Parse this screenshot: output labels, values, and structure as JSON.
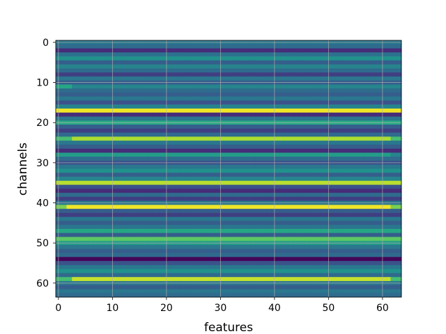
{
  "chart_data": {
    "type": "heatmap",
    "title": "",
    "xlabel": "features",
    "ylabel": "channels",
    "colormap": "viridis",
    "x_range": [
      0,
      63
    ],
    "y_range": [
      0,
      63
    ],
    "y_inverted": true,
    "grid": true,
    "x_ticks": [
      0,
      10,
      20,
      30,
      40,
      50,
      60
    ],
    "y_ticks": [
      0,
      10,
      20,
      30,
      40,
      50,
      60
    ],
    "x_tick_labels": [
      "0",
      "10",
      "20",
      "30",
      "40",
      "50",
      "60"
    ],
    "y_tick_labels": [
      "0",
      "10",
      "20",
      "30",
      "40",
      "50",
      "60"
    ],
    "n_features": 64,
    "n_channels": 64,
    "value_range": [
      0,
      1
    ],
    "row_values": [
      0.4,
      0.35,
      0.15,
      0.38,
      0.5,
      0.3,
      0.45,
      0.35,
      0.2,
      0.4,
      0.3,
      0.45,
      0.35,
      0.3,
      0.4,
      0.25,
      0.45,
      0.98,
      0.15,
      0.4,
      0.62,
      0.3,
      0.2,
      0.35,
      0.88,
      0.4,
      0.3,
      0.15,
      0.55,
      0.35,
      0.25,
      0.4,
      0.5,
      0.3,
      0.45,
      0.9,
      0.25,
      0.15,
      0.35,
      0.2,
      0.4,
      0.98,
      0.3,
      0.2,
      0.4,
      0.3,
      0.4,
      0.6,
      0.3,
      0.75,
      0.55,
      0.4,
      0.3,
      0.35,
      0.02,
      0.25,
      0.4,
      0.5,
      0.35,
      0.92,
      0.4,
      0.3,
      0.4,
      0.35
    ],
    "left_edge_values": [
      {
        "row": 11,
        "cols": [
          0,
          1,
          2
        ],
        "value": 0.6
      },
      {
        "row": 24,
        "cols": [
          0,
          1,
          2
        ],
        "value": 0.7
      },
      {
        "row": 41,
        "cols": [
          0,
          1
        ],
        "value": 0.8
      },
      {
        "row": 49,
        "cols": [
          0,
          1,
          2
        ],
        "value": 0.75
      },
      {
        "row": 59,
        "cols": [
          0,
          1,
          2
        ],
        "value": 0.7
      }
    ],
    "right_edge_values": [
      {
        "row": 24,
        "cols": [
          62,
          63
        ],
        "value": 0.7
      },
      {
        "row": 28,
        "cols": [
          62,
          63
        ],
        "value": 0.45
      },
      {
        "row": 41,
        "cols": [
          62,
          63
        ],
        "value": 0.8
      },
      {
        "row": 59,
        "cols": [
          62,
          63
        ],
        "value": 0.7
      }
    ]
  }
}
